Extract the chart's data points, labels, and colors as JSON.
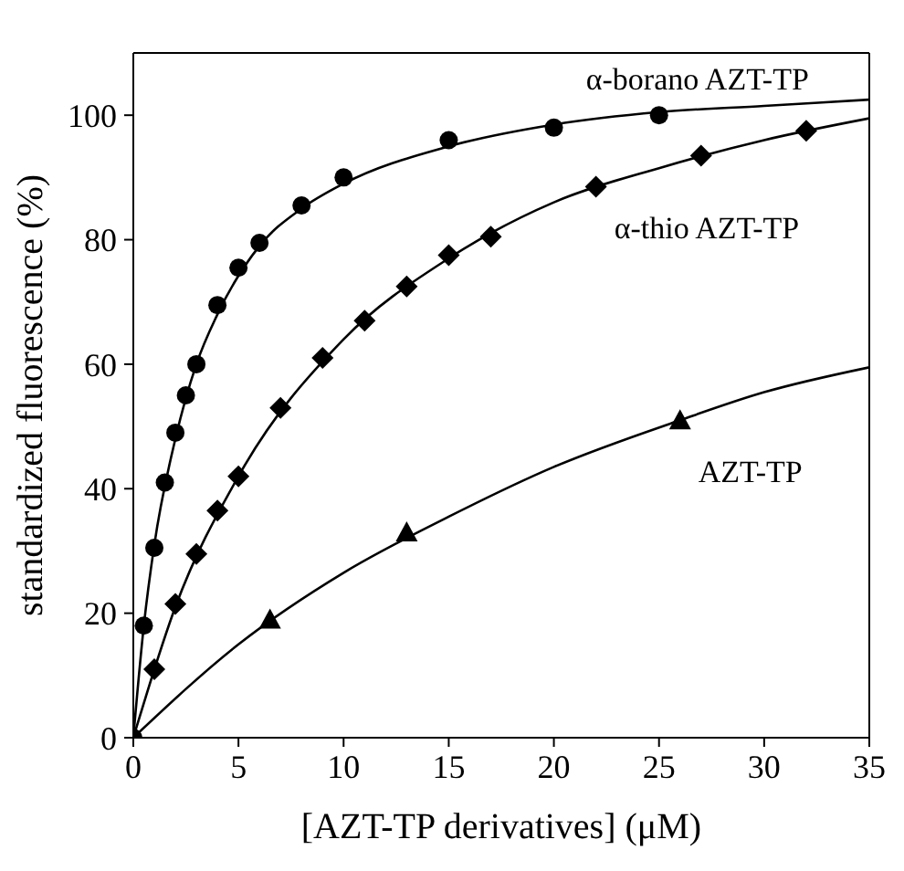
{
  "chart_data": {
    "type": "scatter",
    "xlabel": "[AZT-TP derivatives] (μM)",
    "ylabel": "standardized fluorescence (%)",
    "xlim": [
      0,
      35
    ],
    "ylim": [
      0,
      110
    ],
    "xticks": [
      0,
      5,
      10,
      15,
      20,
      25,
      30,
      35
    ],
    "yticks": [
      0,
      20,
      40,
      60,
      80,
      100
    ],
    "grid": false,
    "legend": false,
    "series": [
      {
        "name": "α-borano AZT-TP",
        "marker": "circle",
        "color": "#000000",
        "x": [
          0,
          0.5,
          1,
          1.5,
          2,
          2.5,
          3,
          4,
          5,
          6,
          8,
          10,
          15,
          20,
          25
        ],
        "values": [
          0,
          18,
          30.5,
          41,
          49,
          55,
          60,
          69.5,
          75.5,
          79.5,
          85.5,
          90,
          96,
          98,
          100
        ]
      },
      {
        "name": "α-thio AZT-TP",
        "marker": "diamond",
        "color": "#000000",
        "x": [
          1,
          2,
          3,
          4,
          5,
          7,
          9,
          11,
          13,
          15,
          17,
          22,
          27,
          32
        ],
        "values": [
          11,
          21.5,
          29.5,
          36.5,
          42,
          53,
          61,
          67,
          72.5,
          77.5,
          80.5,
          88.5,
          93.5,
          97.5
        ]
      },
      {
        "name": "AZT-TP",
        "marker": "triangle",
        "color": "#000000",
        "x": [
          6.5,
          13,
          26
        ],
        "values": [
          19,
          33,
          51
        ]
      },
      {
        "type": "line",
        "marker": "none",
        "color": "#000000",
        "x": [
          0,
          0.5,
          1,
          2,
          3,
          4,
          6,
          8,
          10,
          15,
          20,
          25,
          30,
          35
        ],
        "values": [
          0,
          18,
          31,
          48,
          60,
          68,
          79,
          85,
          89,
          95,
          98.5,
          100.5,
          101.5,
          102.5
        ]
      },
      {
        "type": "line",
        "marker": "none",
        "color": "#000000",
        "x": [
          0,
          2,
          5,
          10,
          15,
          20,
          25,
          30,
          35
        ],
        "values": [
          0,
          21,
          42,
          64,
          77,
          86,
          91.5,
          96,
          99.5
        ]
      },
      {
        "type": "line",
        "marker": "none",
        "color": "#000000",
        "x": [
          0,
          5,
          10,
          15,
          20,
          26,
          30,
          35
        ],
        "values": [
          0,
          15,
          26.5,
          35.5,
          43.5,
          51,
          55.5,
          59.5
        ]
      }
    ]
  }
}
